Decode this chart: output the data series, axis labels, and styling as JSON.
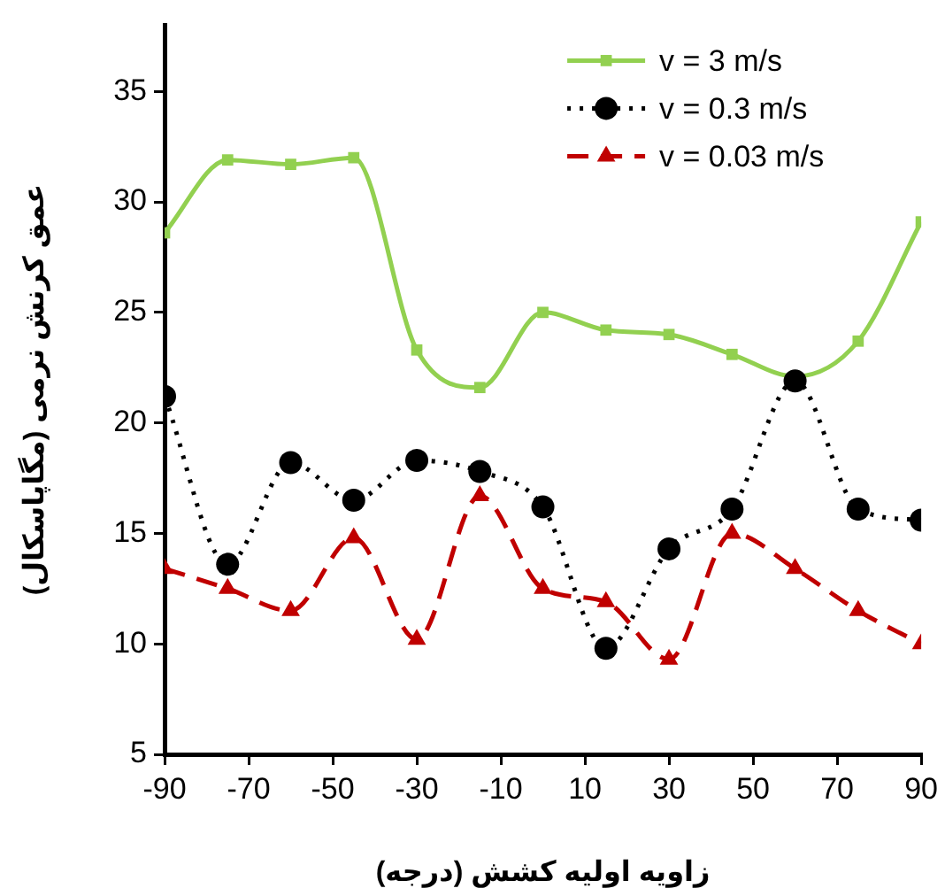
{
  "chart_data": {
    "type": "line",
    "xlabel": "زاویه اولیه کشش (درجه)",
    "ylabel": "عمق کرنش نرمی (مگاپاسکال)",
    "x": [
      -90,
      -75,
      -60,
      -45,
      -30,
      -15,
      0,
      15,
      30,
      45,
      60,
      75,
      90
    ],
    "xlim": [
      -90,
      90
    ],
    "xticks": [
      -90,
      -70,
      -50,
      -30,
      -10,
      10,
      30,
      50,
      70,
      90
    ],
    "ylim": [
      5,
      38
    ],
    "yticks": [
      5,
      10,
      15,
      20,
      25,
      30,
      35
    ],
    "grid": false,
    "legend": "top right",
    "series": [
      {
        "name": "v = 3 m/s",
        "color": "#92d050",
        "marker": "square",
        "line_style": "solid",
        "values": [
          28.6,
          31.9,
          31.7,
          32.0,
          23.3,
          21.6,
          25.0,
          24.2,
          24.0,
          23.1,
          22.1,
          23.7,
          29.1
        ]
      },
      {
        "name": "v = 0.3 m/s",
        "color": "#000000",
        "marker": "circle",
        "line_style": "dotted",
        "values": [
          21.2,
          13.6,
          18.2,
          16.5,
          18.3,
          17.8,
          16.2,
          9.8,
          14.3,
          16.1,
          21.9,
          16.1,
          15.6
        ]
      },
      {
        "name": "v = 0.03 m/s",
        "color": "#c00000",
        "marker": "triangle",
        "line_style": "dashed",
        "values": [
          13.4,
          12.5,
          11.5,
          14.8,
          10.2,
          16.7,
          12.5,
          11.9,
          9.3,
          15.0,
          13.4,
          11.5,
          10.0
        ]
      }
    ]
  }
}
